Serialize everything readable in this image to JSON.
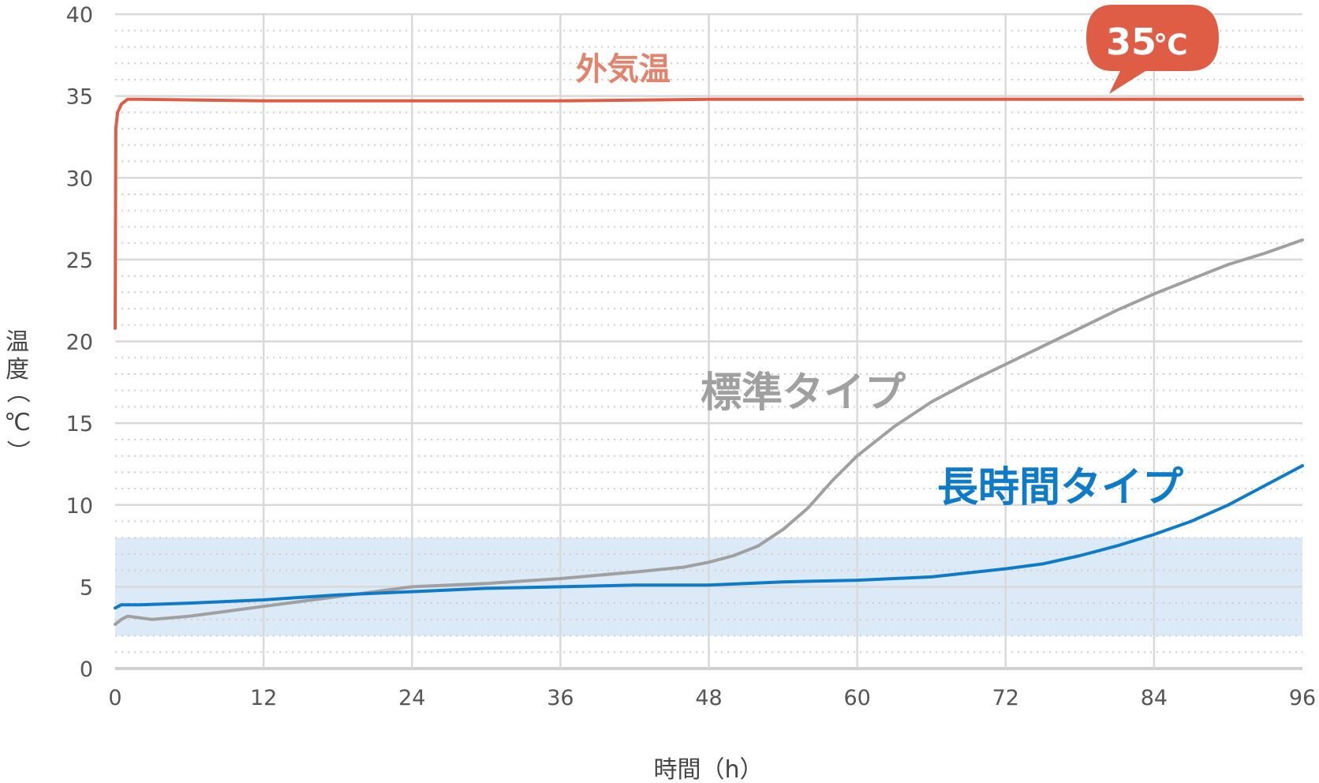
{
  "chart_data": {
    "type": "line",
    "title": "",
    "xlabel": "時間（h）",
    "ylabel": "温度（℃）",
    "xlim": [
      0,
      96
    ],
    "ylim": [
      0,
      40
    ],
    "x_ticks": [
      0,
      12,
      24,
      36,
      48,
      60,
      72,
      84,
      96
    ],
    "y_ticks": [
      0,
      5,
      10,
      15,
      20,
      25,
      30,
      35,
      40
    ],
    "grid": {
      "major_y": true,
      "minor_y_dotted": true,
      "major_x": true
    },
    "shaded_band": {
      "y_from": 2,
      "y_to": 8,
      "color": "#dbeaf6"
    },
    "series": [
      {
        "name": "外気温",
        "color": "#e05d45",
        "x": [
          0,
          0.05,
          0.2,
          0.5,
          1,
          2,
          12,
          24,
          36,
          48,
          60,
          72,
          84,
          96
        ],
        "values": [
          20.8,
          33.0,
          34.0,
          34.5,
          34.8,
          34.8,
          34.7,
          34.7,
          34.7,
          34.8,
          34.8,
          34.8,
          34.8,
          34.8
        ]
      },
      {
        "name": "標準タイプ",
        "color": "#a0a0a0",
        "x": [
          0,
          0.5,
          1,
          3,
          6,
          9,
          12,
          15,
          18,
          21,
          24,
          30,
          36,
          42,
          46,
          48,
          50,
          52,
          54,
          56,
          58,
          60,
          63,
          66,
          69,
          72,
          75,
          78,
          81,
          84,
          87,
          90,
          93,
          96
        ],
        "values": [
          2.7,
          3.0,
          3.2,
          3.0,
          3.2,
          3.5,
          3.8,
          4.1,
          4.4,
          4.7,
          5.0,
          5.2,
          5.5,
          5.9,
          6.2,
          6.5,
          6.9,
          7.5,
          8.5,
          9.8,
          11.5,
          13.0,
          14.8,
          16.3,
          17.5,
          18.6,
          19.7,
          20.8,
          21.9,
          22.9,
          23.8,
          24.7,
          25.4,
          26.2
        ]
      },
      {
        "name": "長時間タイプ",
        "color": "#0d7bc8",
        "x": [
          0,
          0.5,
          2,
          6,
          12,
          18,
          24,
          30,
          36,
          42,
          48,
          54,
          60,
          66,
          72,
          75,
          78,
          81,
          84,
          87,
          90,
          93,
          96
        ],
        "values": [
          3.7,
          3.9,
          3.9,
          4.0,
          4.2,
          4.5,
          4.7,
          4.9,
          5.0,
          5.1,
          5.1,
          5.3,
          5.4,
          5.6,
          6.1,
          6.4,
          6.9,
          7.5,
          8.2,
          9.0,
          10.0,
          11.2,
          12.4
        ]
      }
    ],
    "annotations": [
      {
        "text": "外気温",
        "color": "#e4826c"
      },
      {
        "text": "標準タイプ",
        "color": "#a0a0a0"
      },
      {
        "text": "長時間タイプ",
        "color": "#0d7bc8"
      },
      {
        "text": "35℃",
        "style": "speech-bubble",
        "bg": "#e05d45",
        "color": "#ffffff"
      }
    ]
  },
  "labels": {
    "outside_temp": "外気温",
    "standard_type": "標準タイプ",
    "long_type": "長時間タイプ",
    "bubble_value": "35",
    "bubble_unit": "℃",
    "x_title": "時間（h）",
    "y_title_chars": [
      "温",
      "度",
      "（",
      "℃",
      "）"
    ]
  }
}
